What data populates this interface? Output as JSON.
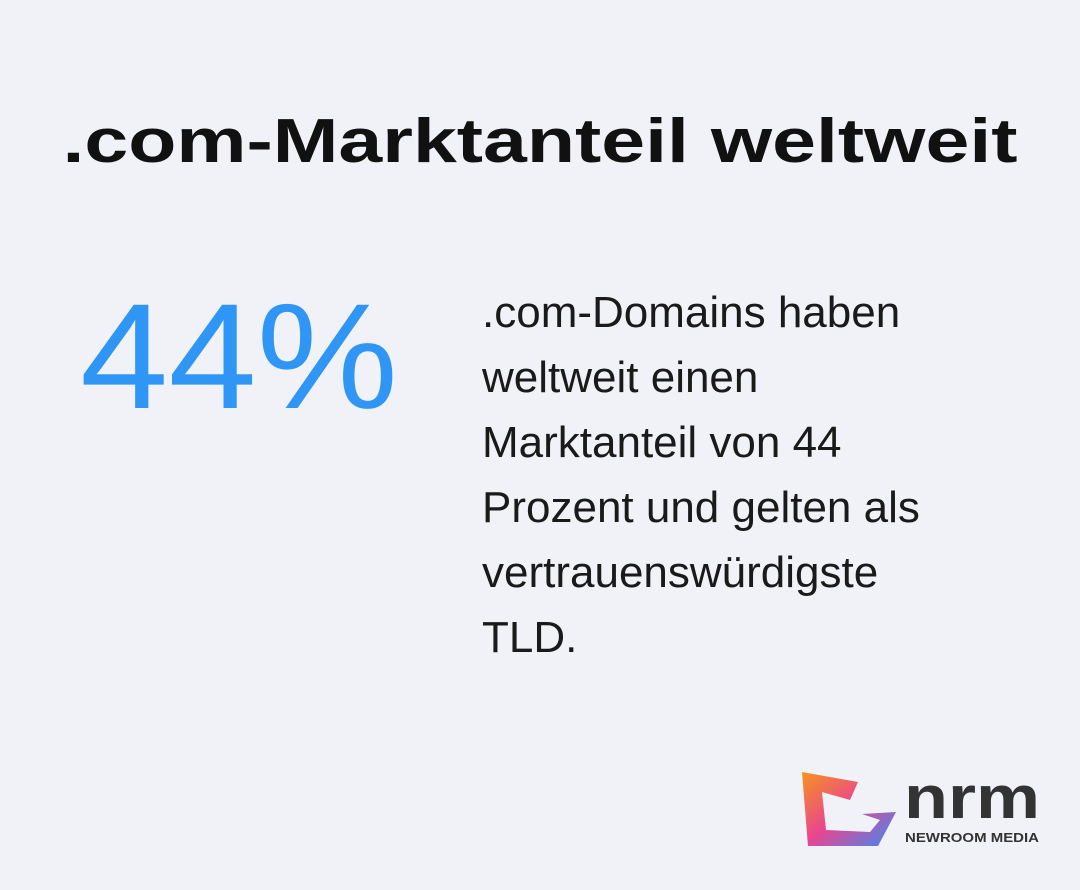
{
  "title": ".com-Marktanteil weltweit",
  "stat": "44%",
  "description": [
    ".com-Domains haben",
    "weltweit einen",
    "Marktanteil von 44",
    "Prozent und gelten als",
    "vertrauenswürdigste",
    "TLD."
  ],
  "logo": {
    "wordmark": "nrm",
    "tagline": "NEWROOM MEDIA"
  }
}
